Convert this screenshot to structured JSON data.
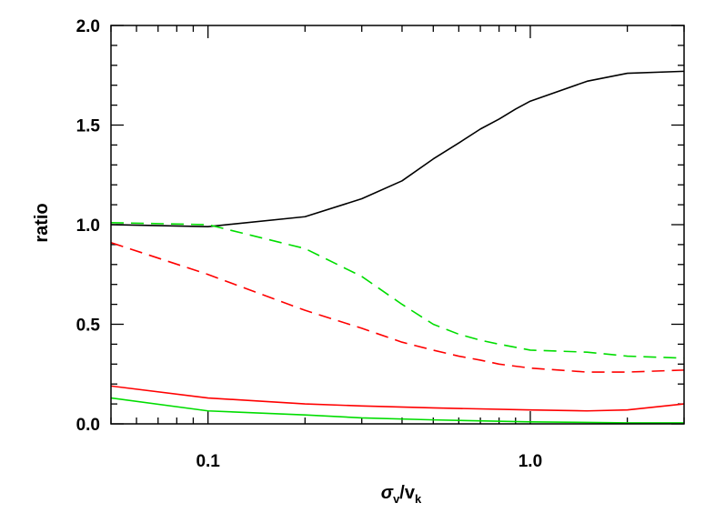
{
  "chart_data": {
    "type": "line",
    "title": "",
    "xlabel": {
      "symbol": "σ",
      "symbol_sub": "v",
      "slash": "/",
      "letter": "v",
      "letter_sub": "k"
    },
    "ylabel": "ratio",
    "xscale": "log",
    "xlim": [
      0.05,
      3.0
    ],
    "ylim": [
      0.0,
      2.0
    ],
    "x_major_ticks": [
      0.1,
      1.0
    ],
    "x_tick_labels": [
      "0.1",
      "1.0"
    ],
    "y_major_ticks": [
      0.0,
      0.5,
      1.0,
      1.5,
      2.0
    ],
    "y_tick_labels": [
      "0.0",
      "0.5",
      "1.0",
      "1.5",
      "2.0"
    ],
    "y_minor_step": 0.1,
    "grid": false,
    "legend": "none",
    "series": [
      {
        "color": "#000000",
        "dash": "solid",
        "points": [
          [
            0.05,
            1.0
          ],
          [
            0.1,
            0.99
          ],
          [
            0.2,
            1.04
          ],
          [
            0.3,
            1.13
          ],
          [
            0.4,
            1.22
          ],
          [
            0.5,
            1.33
          ],
          [
            0.6,
            1.41
          ],
          [
            0.7,
            1.48
          ],
          [
            0.8,
            1.53
          ],
          [
            0.9,
            1.58
          ],
          [
            1.0,
            1.62
          ],
          [
            1.5,
            1.72
          ],
          [
            2.0,
            1.76
          ],
          [
            3.0,
            1.77
          ]
        ]
      },
      {
        "color": "#00dd00",
        "dash": "dashed",
        "points": [
          [
            0.05,
            1.01
          ],
          [
            0.1,
            1.0
          ],
          [
            0.2,
            0.88
          ],
          [
            0.3,
            0.74
          ],
          [
            0.4,
            0.6
          ],
          [
            0.5,
            0.5
          ],
          [
            0.6,
            0.45
          ],
          [
            0.7,
            0.42
          ],
          [
            0.8,
            0.4
          ],
          [
            1.0,
            0.37
          ],
          [
            1.5,
            0.36
          ],
          [
            2.0,
            0.34
          ],
          [
            3.0,
            0.33
          ]
        ]
      },
      {
        "color": "#ff0000",
        "dash": "dashed",
        "points": [
          [
            0.05,
            0.91
          ],
          [
            0.1,
            0.75
          ],
          [
            0.2,
            0.57
          ],
          [
            0.3,
            0.48
          ],
          [
            0.4,
            0.41
          ],
          [
            0.5,
            0.37
          ],
          [
            0.6,
            0.34
          ],
          [
            0.7,
            0.32
          ],
          [
            0.8,
            0.3
          ],
          [
            1.0,
            0.28
          ],
          [
            1.5,
            0.26
          ],
          [
            2.0,
            0.26
          ],
          [
            3.0,
            0.27
          ]
        ]
      },
      {
        "color": "#ff0000",
        "dash": "solid",
        "points": [
          [
            0.05,
            0.19
          ],
          [
            0.1,
            0.13
          ],
          [
            0.2,
            0.1
          ],
          [
            0.3,
            0.09
          ],
          [
            0.5,
            0.08
          ],
          [
            1.0,
            0.07
          ],
          [
            1.5,
            0.065
          ],
          [
            2.0,
            0.07
          ],
          [
            3.0,
            0.1
          ]
        ]
      },
      {
        "color": "#00dd00",
        "dash": "solid",
        "points": [
          [
            0.05,
            0.13
          ],
          [
            0.1,
            0.065
          ],
          [
            0.2,
            0.045
          ],
          [
            0.3,
            0.03
          ],
          [
            0.5,
            0.02
          ],
          [
            1.0,
            0.01
          ],
          [
            2.0,
            0.005
          ],
          [
            3.0,
            0.005
          ]
        ]
      }
    ]
  }
}
